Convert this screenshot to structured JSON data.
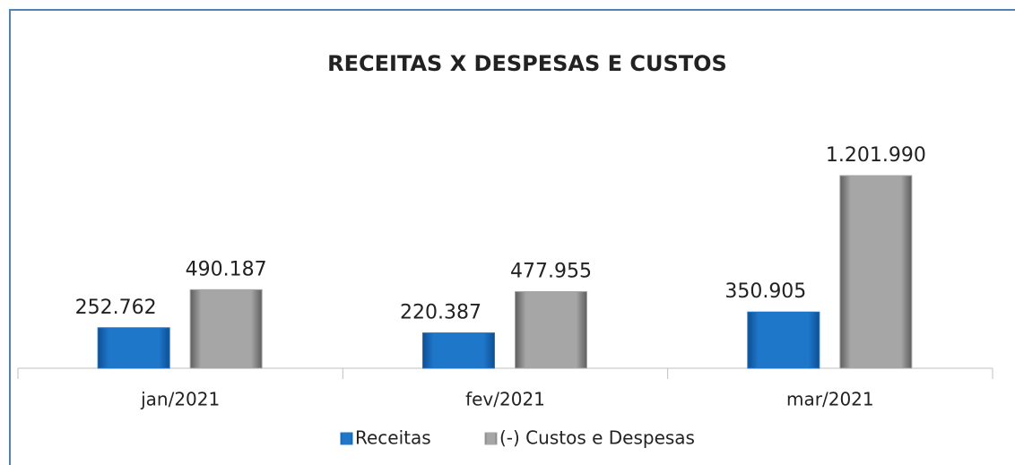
{
  "chart_data": {
    "type": "bar",
    "title": "RECEITAS X DESPESAS E CUSTOS",
    "categories": [
      "jan/2021",
      "fev/2021",
      "mar/2021"
    ],
    "series": [
      {
        "name": "Receitas",
        "color": "#1f77c9",
        "values": [
          252762,
          220387,
          350905
        ],
        "value_labels": [
          "252.762",
          "220.387",
          "350.905"
        ]
      },
      {
        "name": "(-) Custos e Despesas",
        "color": "#a6a6a6",
        "values": [
          490187,
          477955,
          1201990
        ],
        "value_labels": [
          "490.187",
          "477.955",
          "1.201.990"
        ]
      }
    ],
    "legend": "bottom"
  }
}
